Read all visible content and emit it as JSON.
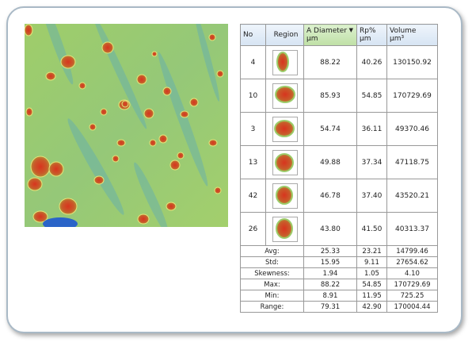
{
  "table": {
    "columns": [
      {
        "label": "No"
      },
      {
        "label": "Region"
      },
      {
        "label": "A Diameter",
        "unit": "µm"
      },
      {
        "label": "Rp%",
        "unit": "µm"
      },
      {
        "label": "Volume",
        "unit": "µm³"
      }
    ],
    "rows": [
      [
        "4",
        "88.22",
        "40.26",
        "130150.92"
      ],
      [
        "10",
        "85.93",
        "54.85",
        "170729.69"
      ],
      [
        "3",
        "54.74",
        "36.11",
        "49370.46"
      ],
      [
        "13",
        "49.88",
        "37.34",
        "47118.75"
      ],
      [
        "42",
        "46.78",
        "37.40",
        "43520.21"
      ],
      [
        "26",
        "43.80",
        "41.50",
        "40313.37"
      ]
    ],
    "stats": [
      [
        "Avg:",
        "25.33",
        "23.21",
        "14799.46"
      ],
      [
        "Std:",
        "15.95",
        "9.11",
        "27654.62"
      ],
      [
        "Skewness:",
        "1.94",
        "1.05",
        "4.10"
      ],
      [
        "Max:",
        "88.22",
        "54.85",
        "170729.69"
      ],
      [
        "Min:",
        "8.91",
        "11.95",
        "725.25"
      ],
      [
        "Range:",
        "79.31",
        "42.90",
        "170004.44"
      ]
    ]
  }
}
